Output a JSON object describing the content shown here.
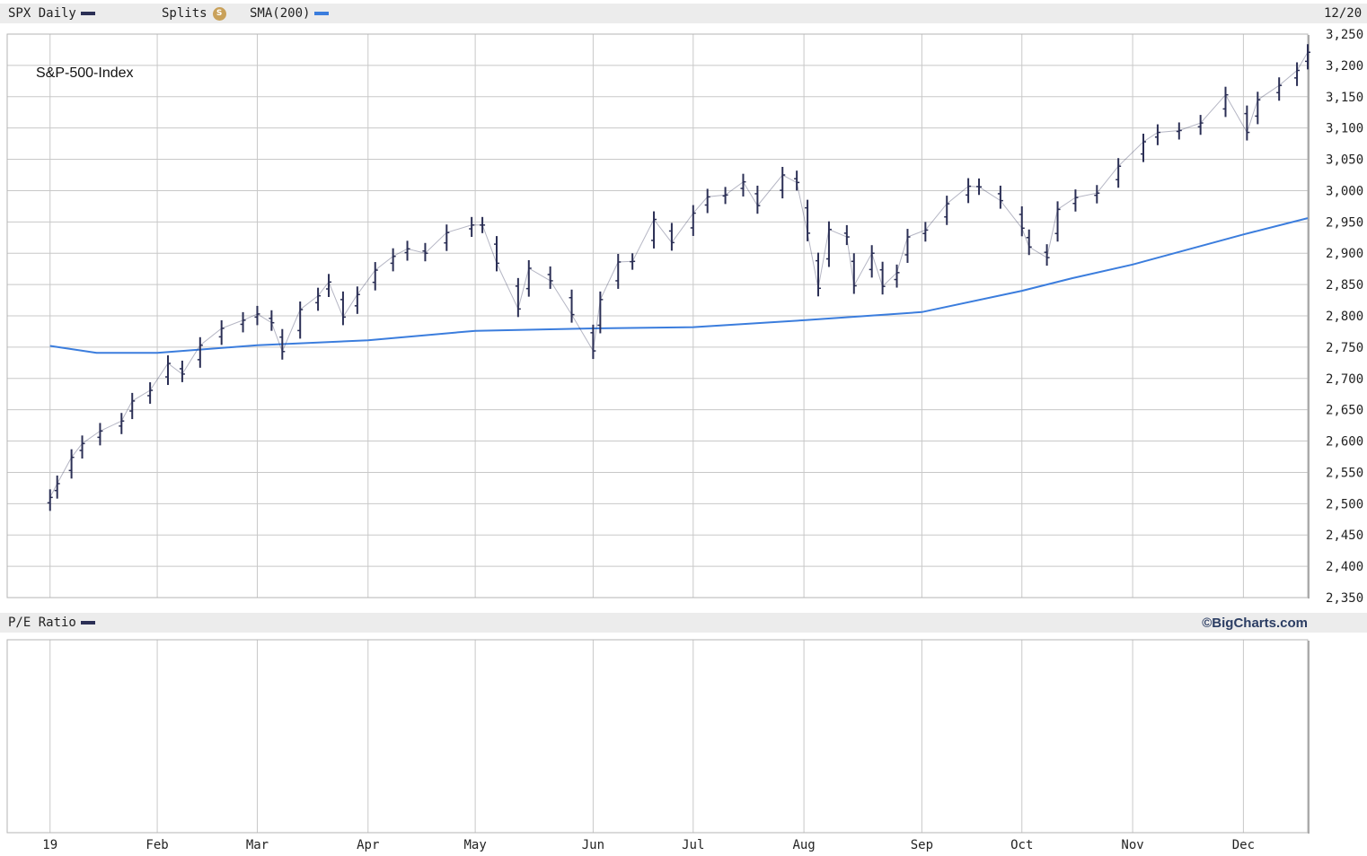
{
  "header": {
    "symbol_label": "SPX Daily",
    "splits_label": "Splits",
    "splits_icon": "S",
    "sma_label": "SMA(200)",
    "date_label": "12/20"
  },
  "pe_panel": {
    "label": "P/E Ratio",
    "brand": "©BigCharts.com"
  },
  "colors": {
    "price": "#2b2f55",
    "sma": "#3b7ddd",
    "grid": "#c8c8c8",
    "legend_bg": "#ececec",
    "split_badge": "#c9a15a"
  },
  "chart_data": {
    "type": "line",
    "title": "S&P-500-Index",
    "series": [
      {
        "name": "SPX Daily",
        "x": [
          "2019-01-02",
          "2019-01-04",
          "2019-01-08",
          "2019-01-11",
          "2019-01-16",
          "2019-01-22",
          "2019-01-25",
          "2019-01-30",
          "2019-02-04",
          "2019-02-08",
          "2019-02-13",
          "2019-02-19",
          "2019-02-25",
          "2019-03-01",
          "2019-03-05",
          "2019-03-08",
          "2019-03-13",
          "2019-03-18",
          "2019-03-21",
          "2019-03-25",
          "2019-03-29",
          "2019-04-03",
          "2019-04-08",
          "2019-04-12",
          "2019-04-17",
          "2019-04-23",
          "2019-04-30",
          "2019-05-03",
          "2019-05-07",
          "2019-05-13",
          "2019-05-16",
          "2019-05-22",
          "2019-05-28",
          "2019-06-03",
          "2019-06-05",
          "2019-06-10",
          "2019-06-14",
          "2019-06-20",
          "2019-06-25",
          "2019-07-01",
          "2019-07-05",
          "2019-07-10",
          "2019-07-15",
          "2019-07-19",
          "2019-07-26",
          "2019-07-30",
          "2019-08-02",
          "2019-08-05",
          "2019-08-08",
          "2019-08-13",
          "2019-08-15",
          "2019-08-20",
          "2019-08-23",
          "2019-08-27",
          "2019-08-30",
          "2019-09-04",
          "2019-09-10",
          "2019-09-16",
          "2019-09-19",
          "2019-09-25",
          "2019-10-01",
          "2019-10-03",
          "2019-10-08",
          "2019-10-11",
          "2019-10-16",
          "2019-10-22",
          "2019-10-28",
          "2019-11-04",
          "2019-11-08",
          "2019-11-14",
          "2019-11-20",
          "2019-11-27",
          "2019-12-03",
          "2019-12-06",
          "2019-12-12",
          "2019-12-17",
          "2019-12-20"
        ],
        "values": [
          2510,
          2532,
          2574,
          2596,
          2616,
          2632,
          2664,
          2681,
          2724,
          2707,
          2753,
          2780,
          2793,
          2803,
          2789,
          2743,
          2810,
          2832,
          2854,
          2798,
          2834,
          2873,
          2895,
          2907,
          2900,
          2933,
          2945,
          2945,
          2884,
          2811,
          2876,
          2856,
          2802,
          2744,
          2826,
          2886,
          2887,
          2954,
          2917,
          2964,
          2990,
          2993,
          3014,
          2976,
          3025,
          3013,
          2932,
          2844,
          2938,
          2926,
          2848,
          2900,
          2847,
          2869,
          2926,
          2937,
          2979,
          3007,
          3006,
          2984,
          2940,
          2910,
          2893,
          2970,
          2989,
          2996,
          3039,
          3078,
          3093,
          3096,
          3108,
          3153,
          3093,
          3145,
          3168,
          3192,
          3221
        ]
      },
      {
        "name": "SMA(200)",
        "x": [
          "2019-01-02",
          "2019-01-15",
          "2019-02-01",
          "2019-03-01",
          "2019-04-01",
          "2019-05-01",
          "2019-06-03",
          "2019-07-01",
          "2019-08-01",
          "2019-09-03",
          "2019-10-01",
          "2019-10-15",
          "2019-11-01",
          "2019-12-02",
          "2019-12-20"
        ],
        "values": [
          2752,
          2741,
          2741,
          2753,
          2761,
          2776,
          2780,
          2782,
          2793,
          2806,
          2840,
          2860,
          2882,
          2930,
          2956
        ]
      }
    ],
    "ylim": [
      2350,
      3250
    ],
    "yticks": [
      "3,250",
      "3,200",
      "3,150",
      "3,100",
      "3,050",
      "3,000",
      "2,950",
      "2,900",
      "2,850",
      "2,800",
      "2,750",
      "2,700",
      "2,650",
      "2,600",
      "2,550",
      "2,500",
      "2,450",
      "2,400",
      "2,350"
    ],
    "xticks": [
      "19",
      "Feb",
      "Mar",
      "Apr",
      "May",
      "Jun",
      "Jul",
      "Aug",
      "Sep",
      "Oct",
      "Nov",
      "Dec"
    ],
    "grid": true
  }
}
